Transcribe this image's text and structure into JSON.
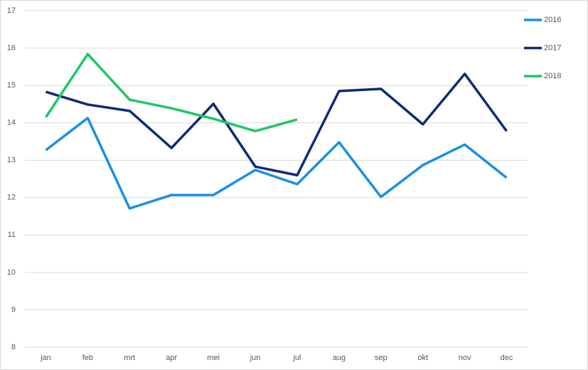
{
  "chart_data": {
    "type": "line",
    "categories": [
      "jan",
      "feb",
      "mrt",
      "apr",
      "mei",
      "jun",
      "jul",
      "aug",
      "sep",
      "okt",
      "nov",
      "dec"
    ],
    "series": [
      {
        "name": "2016",
        "color": "#1a8fe3",
        "values": [
          13.27,
          14.13,
          11.71,
          12.07,
          12.07,
          12.74,
          12.36,
          13.48,
          12.02,
          12.87,
          13.42,
          12.53
        ]
      },
      {
        "name": "2017",
        "color": "#0f2a7a",
        "values": [
          14.83,
          14.49,
          14.32,
          13.33,
          14.51,
          12.83,
          12.6,
          14.85,
          14.91,
          13.96,
          15.31,
          13.78
        ]
      },
      {
        "name": "2018",
        "color": "#1ec760",
        "values": [
          14.15,
          15.84,
          14.62,
          14.39,
          14.11,
          13.78,
          14.09,
          null,
          null,
          null,
          null,
          null
        ]
      }
    ],
    "ylim": [
      8,
      17
    ],
    "yticks": [
      8,
      9,
      10,
      11,
      12,
      13,
      14,
      15,
      16,
      17
    ],
    "grid": true,
    "legend": "right"
  }
}
